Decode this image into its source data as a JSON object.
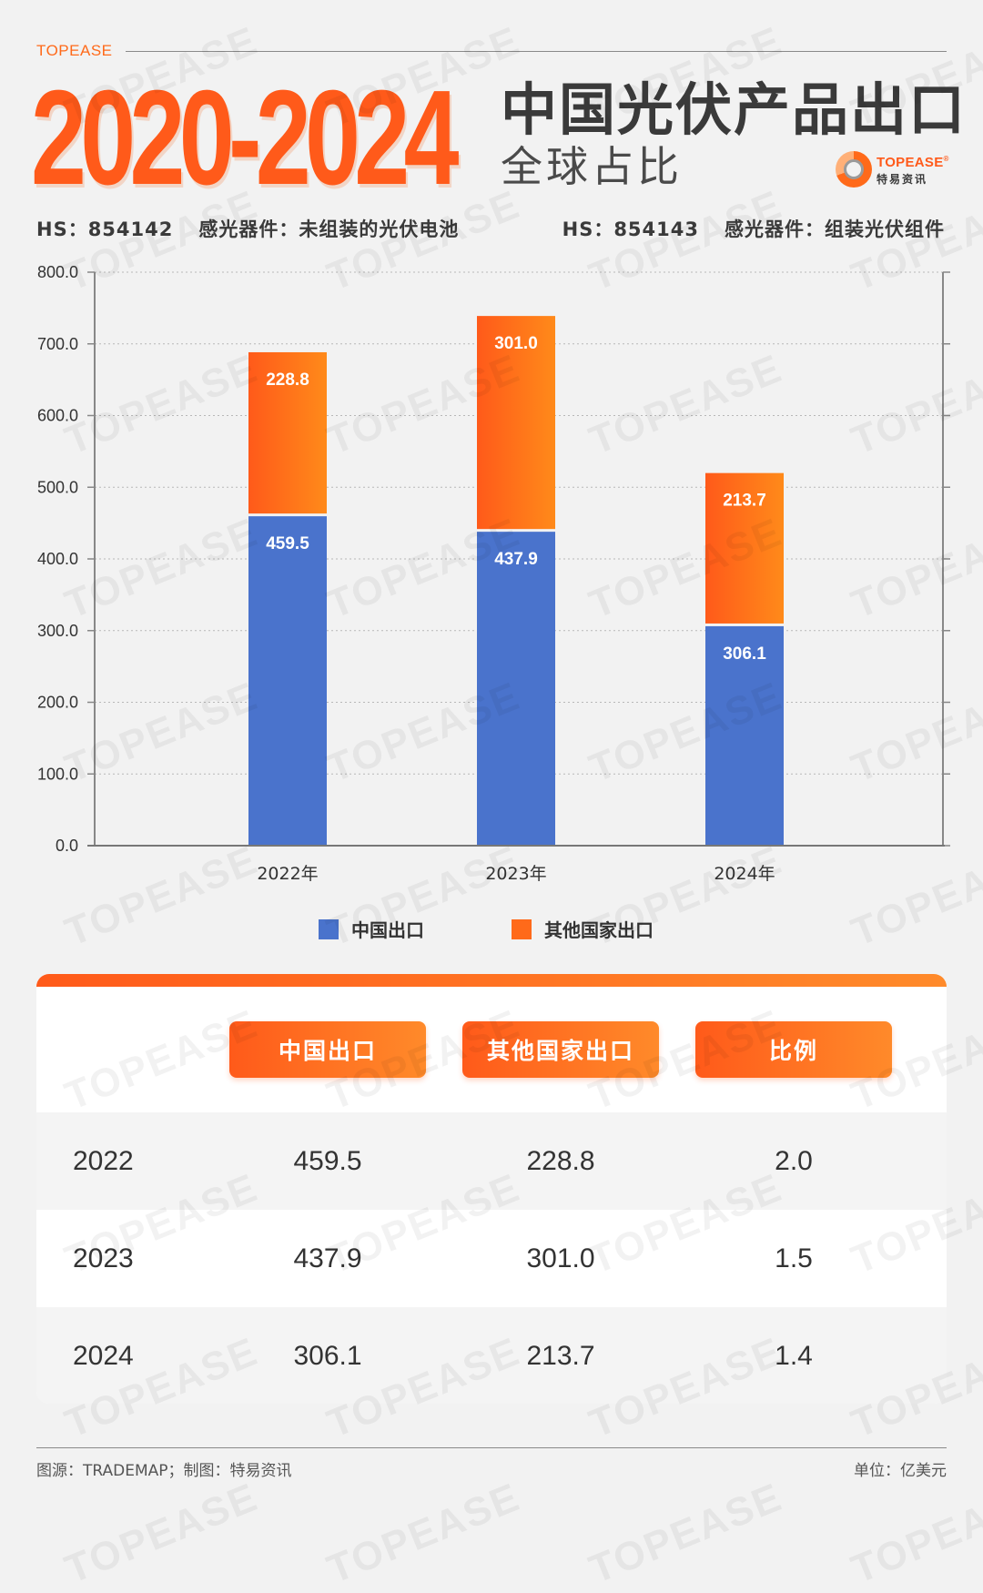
{
  "brand": {
    "label": "TOPEASE",
    "watermark_text": "TOPEASE",
    "logo_word": "TOPEASE",
    "logo_registered": "®",
    "logo_cn": "特易资讯"
  },
  "header": {
    "years": "2020-2024",
    "title": "中国光伏产品出口",
    "subtitle": "全球占比",
    "hs_left_code": "HS：854142",
    "hs_left_desc": "感光器件：未组装的光伏电池",
    "hs_right_code": "HS：854143",
    "hs_right_desc": "感光器件：组装光伏组件"
  },
  "colors": {
    "accent": "#ff5a1a",
    "china": "#4a73cc",
    "other_start": "#ff5a1a",
    "other_end": "#ff8a1a"
  },
  "chart_data": {
    "type": "bar",
    "stacked": true,
    "categories": [
      "2022年",
      "2023年",
      "2024年"
    ],
    "series": [
      {
        "name": "中国出口",
        "values": [
          459.5,
          437.9,
          306.1
        ],
        "labels": [
          "459.5",
          "437.9",
          "306.1"
        ]
      },
      {
        "name": "其他国家出口",
        "values": [
          228.8,
          301.0,
          213.7
        ],
        "labels": [
          "228.8",
          "301.0",
          "213.7"
        ]
      }
    ],
    "ylim": [
      0,
      800
    ],
    "yticks": [
      "0.0",
      "100.0",
      "200.0",
      "300.0",
      "400.0",
      "500.0",
      "600.0",
      "700.0",
      "800.0"
    ],
    "grid": true,
    "legend": "bottom",
    "title": "",
    "xlabel": "",
    "ylabel": ""
  },
  "table": {
    "headers": [
      "中国出口",
      "其他国家出口",
      "比例"
    ],
    "rows": [
      {
        "year": "2022",
        "china": "459.5",
        "other": "228.8",
        "ratio": "2.0"
      },
      {
        "year": "2023",
        "china": "437.9",
        "other": "301.0",
        "ratio": "1.5"
      },
      {
        "year": "2024",
        "china": "306.1",
        "other": "213.7",
        "ratio": "1.4"
      }
    ]
  },
  "footer": {
    "source": "图源：TRADEMAP；制图：特易资讯",
    "unit": "单位：亿美元"
  }
}
